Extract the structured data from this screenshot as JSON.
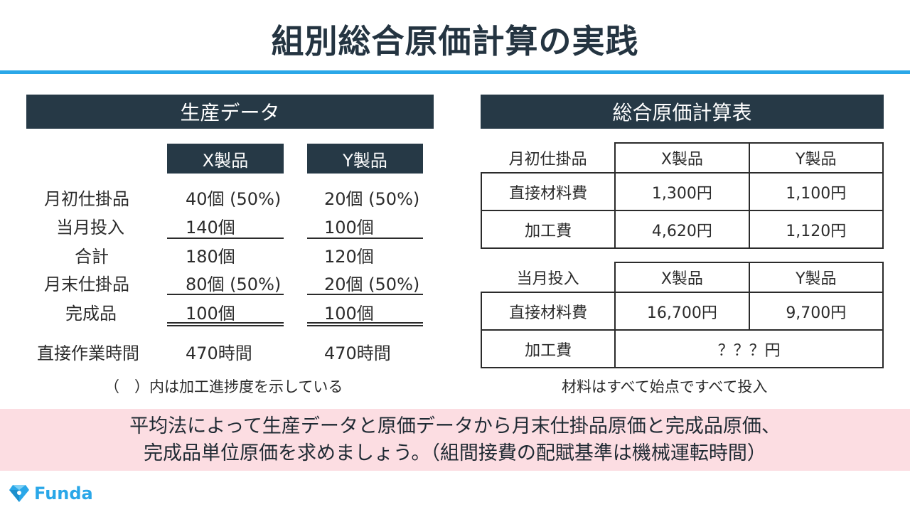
{
  "title": "組別総合原価計算の実践",
  "left": {
    "header": "生産データ",
    "columns": [
      "X製品",
      "Y製品"
    ],
    "rows": [
      {
        "label": "月初仕掛品",
        "x": "40個 (50%)",
        "y": "20個 (50%)"
      },
      {
        "label": "当月投入",
        "x": "140個",
        "y": "100個"
      },
      {
        "label": "合計",
        "x": "180個",
        "y": "120個"
      },
      {
        "label": "月末仕掛品",
        "x": "80個 (50%)",
        "y": "20個 (50%)"
      },
      {
        "label": "完成品",
        "x": "100個",
        "y": "100個"
      },
      {
        "label": "直接作業時間",
        "x": "470時間",
        "y": "470時間"
      }
    ],
    "note": "（　）内は加工進捗度を示している"
  },
  "right": {
    "header": "総合原価計算表",
    "table1": {
      "corner": "月初仕掛品",
      "columns": [
        "X製品",
        "Y製品"
      ],
      "rows": [
        {
          "label": "直接材料費",
          "x": "1,300円",
          "y": "1,100円"
        },
        {
          "label": "加工費",
          "x": "4,620円",
          "y": "1,120円"
        }
      ]
    },
    "table2": {
      "corner": "当月投入",
      "columns": [
        "X製品",
        "Y製品"
      ],
      "rows": [
        {
          "label": "直接材料費",
          "x": "16,700円",
          "y": "9,700円"
        },
        {
          "label": "加工費",
          "merged": "？？？円"
        }
      ]
    },
    "note": "材料はすべて始点ですべて投入"
  },
  "banner": {
    "line1": "平均法によって生産データと原価データから月末仕掛品原価と完成品原価、",
    "line2": "完成品単位原価を求めましょう。（組間接費の配賦基準は機械運転時間）"
  },
  "logo": {
    "text": "Funda",
    "icon": "diamond-logo-icon",
    "color": "#2aa7e8"
  }
}
